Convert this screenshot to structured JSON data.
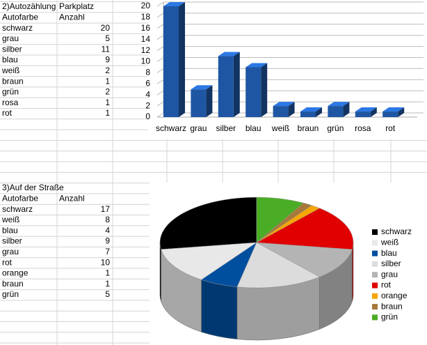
{
  "tables": [
    {
      "title": [
        "2)Autozählung",
        "Parkplatz"
      ],
      "header": [
        "Autofarbe",
        "Anzahl"
      ],
      "rows": [
        [
          "schwarz",
          20
        ],
        [
          "grau",
          5
        ],
        [
          "silber",
          11
        ],
        [
          "blau",
          9
        ],
        [
          "weiß",
          2
        ],
        [
          "braun",
          1
        ],
        [
          "grün",
          2
        ],
        [
          "rosa",
          1
        ],
        [
          "rot",
          1
        ]
      ]
    },
    {
      "title": [
        "3)Auf der Straße"
      ],
      "header": [
        "Autofarbe",
        "Anzahl"
      ],
      "rows": [
        [
          "schwarz",
          17
        ],
        [
          "weiß",
          8
        ],
        [
          "blau",
          4
        ],
        [
          "silber",
          9
        ],
        [
          "grau",
          7
        ],
        [
          "rot",
          10
        ],
        [
          "orange",
          1
        ],
        [
          "braun",
          1
        ],
        [
          "grün",
          5
        ]
      ]
    }
  ],
  "chart_data": [
    {
      "type": "bar",
      "categories": [
        "schwarz",
        "grau",
        "silber",
        "blau",
        "weiß",
        "braun",
        "grün",
        "rosa",
        "rot"
      ],
      "values": [
        20,
        5,
        11,
        9,
        2,
        1,
        2,
        1,
        1
      ],
      "color": "#1f56a3",
      "ylim": [
        0,
        20
      ],
      "yticks": [
        0,
        2,
        4,
        6,
        8,
        10,
        12,
        14,
        16,
        18,
        20
      ],
      "grid": true
    },
    {
      "type": "pie",
      "categories": [
        "schwarz",
        "weiß",
        "blau",
        "silber",
        "grau",
        "rot",
        "orange",
        "braun",
        "grün"
      ],
      "values": [
        17,
        8,
        4,
        9,
        7,
        10,
        1,
        1,
        5
      ],
      "colors": [
        "#000000",
        "#e8e8e8",
        "#004f9f",
        "#dcdcdc",
        "#b4b4b4",
        "#e00000",
        "#f7a600",
        "#a6793a",
        "#4aad25"
      ],
      "legend": "right"
    }
  ]
}
